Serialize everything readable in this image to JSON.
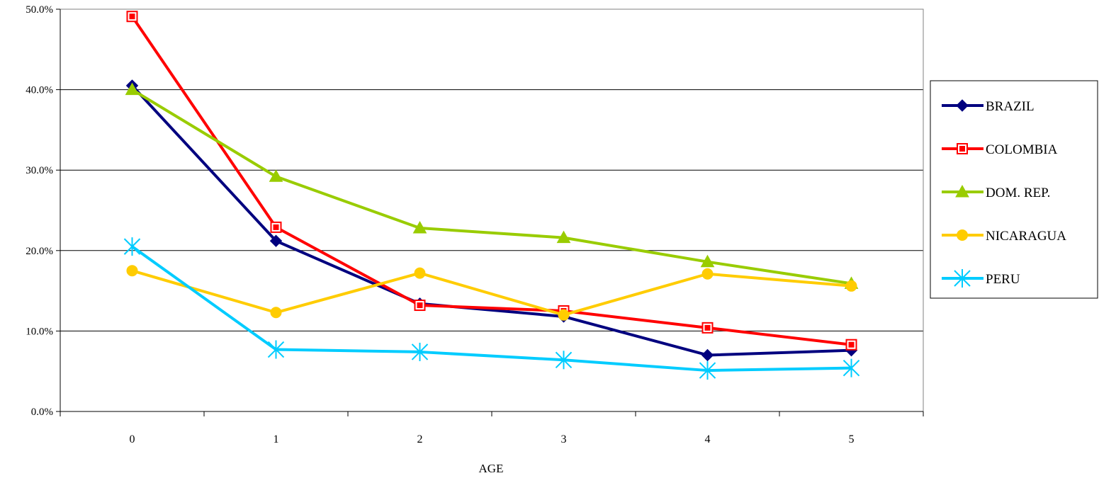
{
  "chart_data": {
    "type": "line",
    "title": "",
    "xlabel": "AGE",
    "ylabel": "",
    "categories": [
      "0",
      "1",
      "2",
      "3",
      "4",
      "5"
    ],
    "y_ticks": [
      "0.0%",
      "10.0%",
      "20.0%",
      "30.0%",
      "40.0%",
      "50.0%"
    ],
    "ylim": [
      0,
      50
    ],
    "grid": true,
    "legend_position": "right",
    "series": [
      {
        "name": "BRAZIL",
        "color": "#00007F",
        "marker": "diamond",
        "values": [
          40.5,
          21.2,
          13.4,
          11.8,
          7.0,
          7.6
        ]
      },
      {
        "name": "COLOMBIA",
        "color": "#FF0000",
        "marker": "square",
        "values": [
          49.1,
          22.9,
          13.2,
          12.5,
          10.4,
          8.3
        ]
      },
      {
        "name": "DOM. REP.",
        "color": "#99CC00",
        "marker": "triangle",
        "values": [
          40.0,
          29.2,
          22.8,
          21.6,
          18.6,
          15.9
        ]
      },
      {
        "name": "NICARAGUA",
        "color": "#FFCC00",
        "marker": "circle",
        "values": [
          17.5,
          12.3,
          17.2,
          12.0,
          17.1,
          15.6
        ]
      },
      {
        "name": "PERU",
        "color": "#00CCFF",
        "marker": "asterisk",
        "values": [
          20.5,
          7.7,
          7.4,
          6.4,
          5.1,
          5.4
        ]
      }
    ]
  }
}
